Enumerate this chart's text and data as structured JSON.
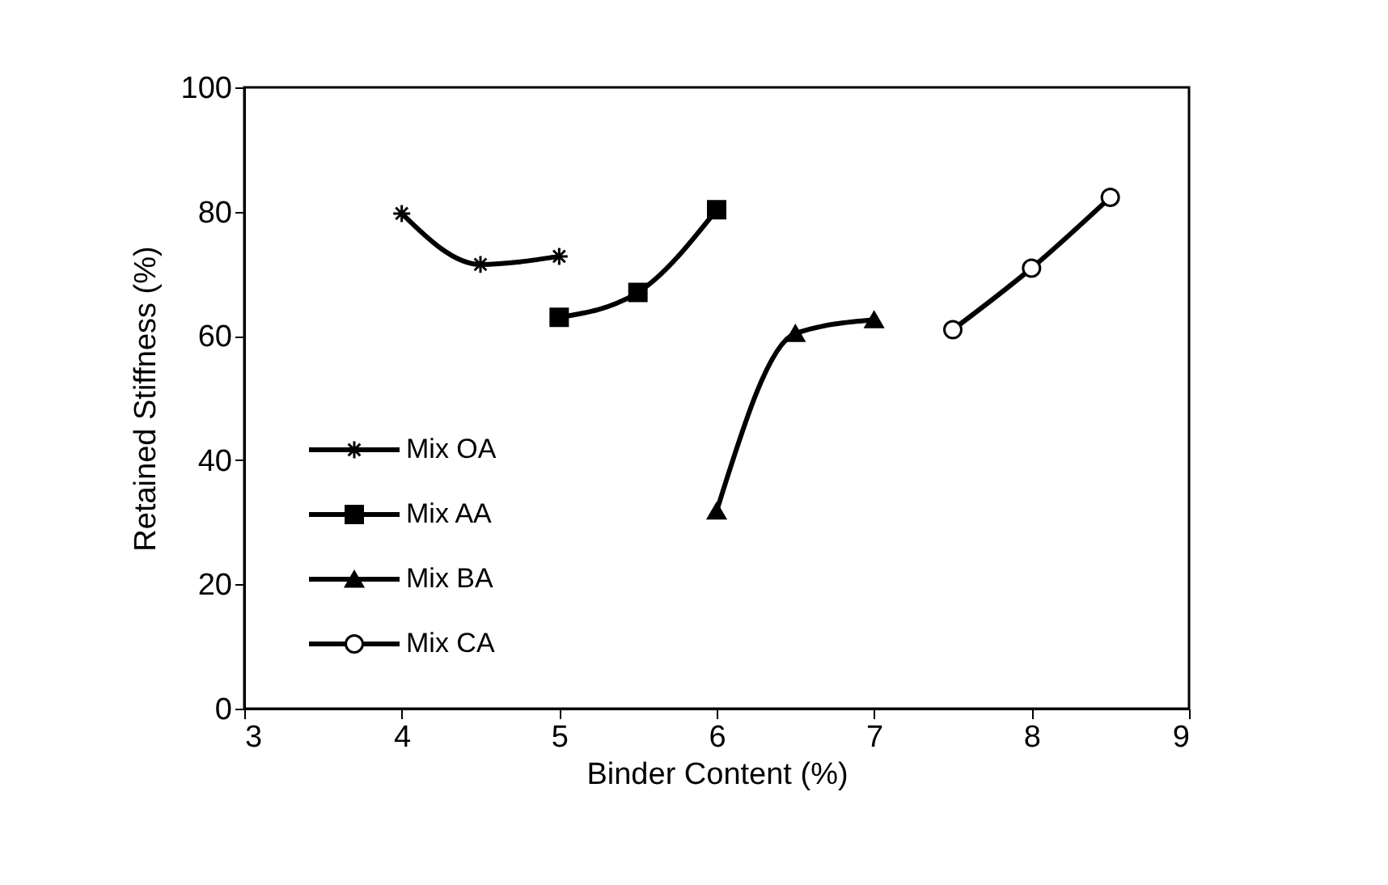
{
  "chart_data": {
    "type": "line",
    "xlabel": "Binder Content (%)",
    "ylabel": "Retained Stiffness (%)",
    "xlim": [
      3,
      9
    ],
    "xticks": [
      3,
      4,
      5,
      6,
      7,
      8,
      9
    ],
    "ylim": [
      0,
      100
    ],
    "yticks": [
      0,
      20,
      40,
      60,
      80,
      100
    ],
    "grid": false,
    "legend": "bottom left",
    "line_style": "solid",
    "series": [
      {
        "name": "Mix OA",
        "color": "#000000",
        "marker": "cross",
        "x": [
          4,
          4.5,
          5
        ],
        "values": [
          79.7,
          71.5,
          72.8
        ]
      },
      {
        "name": "Mix AA",
        "color": "#000000",
        "marker": "square",
        "x": [
          5,
          5.5,
          6
        ],
        "values": [
          63,
          67,
          80.3
        ]
      },
      {
        "name": "Mix BA",
        "color": "#000000",
        "marker": "triangle",
        "x": [
          6,
          6.5,
          7
        ],
        "values": [
          31.8,
          60.4,
          62.6
        ]
      },
      {
        "name": "Mix CA",
        "color": "#000000",
        "marker": "circle",
        "x": [
          7.5,
          8,
          8.5
        ],
        "values": [
          61,
          70.9,
          82.3
        ]
      }
    ]
  }
}
